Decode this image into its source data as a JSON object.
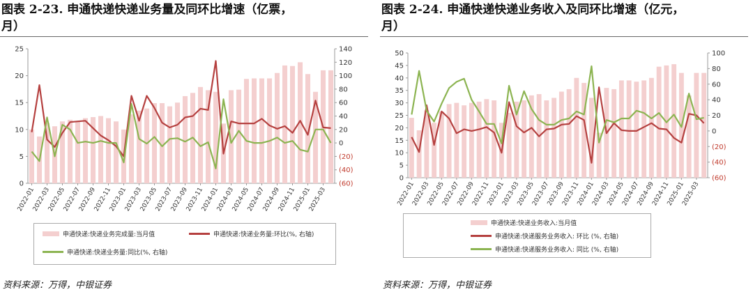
{
  "left": {
    "title_line1": "图表 2-23. 申通快递快递业务量及同环比增速（亿票，",
    "title_line2": "月）",
    "legend": {
      "bar": "申通快递:快递业务完成量:当月值",
      "red": "申通快递:快递业务量:环比(%, 右轴)",
      "green": "申通快递:快递业务量:同比(%, 右轴)"
    },
    "source": "资料来源：万得，中银证券"
  },
  "right": {
    "title_line1": "图表 2-24. 申通快递快递业务收入及同环比增速（亿元，",
    "title_line2": "月）",
    "legend": {
      "bar": "申通快递:快递业务收入:当月值",
      "red": "申通快递:快递服务业务收入: 环比 (%, 右轴)",
      "green": "申通快递:快递服务业务收入: 同比 (%, 右轴)"
    },
    "source": "资料来源：万得，中银证券"
  },
  "colors": {
    "bar": "#f4cfcf",
    "red": "#b5403f",
    "green": "#8cb451",
    "axis": "#999999",
    "right_tick": "#c0392b"
  },
  "chart_data": [
    {
      "type": "bar",
      "title": "图表 2-23. 申通快递快递业务量及同环比增速（亿票，月）",
      "x_tick_labels": [
        "2022-01",
        "2022-03",
        "2022-05",
        "2022-07",
        "2022-09",
        "2022-11",
        "2023-01",
        "2023-03",
        "2023-05",
        "2023-07",
        "2023-09",
        "2023-11",
        "2024-01",
        "2024-03",
        "2024-05",
        "2024-07",
        "2024-09",
        "2024-11",
        "2025-01",
        "2025-03"
      ],
      "x": [
        "2022-01",
        "2022-02",
        "2022-03",
        "2022-04",
        "2022-05",
        "2022-06",
        "2022-07",
        "2022-08",
        "2022-09",
        "2022-10",
        "2022-11",
        "2022-12",
        "2023-01",
        "2023-02",
        "2023-03",
        "2023-04",
        "2023-05",
        "2023-06",
        "2023-07",
        "2023-08",
        "2023-09",
        "2023-10",
        "2023-11",
        "2023-12",
        "2024-01",
        "2024-02",
        "2024-03",
        "2024-04",
        "2024-05",
        "2024-06",
        "2024-07",
        "2024-08",
        "2024-09",
        "2024-10",
        "2024-11",
        "2024-12",
        "2025-01",
        "2025-02",
        "2025-03",
        "2025-04"
      ],
      "y_left_ticks": [
        "0",
        "5",
        "10",
        "15",
        "20",
        "25"
      ],
      "y_right_ticks": [
        "(60)",
        "(40)",
        "(20)",
        "0",
        "20",
        "40",
        "60",
        "80",
        "100",
        "120",
        "140"
      ],
      "ylim_left": [
        0,
        25
      ],
      "ylim_right": [
        -60,
        140
      ],
      "series": [
        {
          "name": "申通快递:快递业务完成量:当月值",
          "kind": "bar",
          "axis": "left",
          "values": [
            10.0,
            8.7,
            11.2,
            10.6,
            11.5,
            11.8,
            11.6,
            12.1,
            12.3,
            12.5,
            12.1,
            11.5,
            10.0,
            12.8,
            13.5,
            13.9,
            14.9,
            14.9,
            14.3,
            15.0,
            16.2,
            16.8,
            17.9,
            17.3,
            17.0,
            11.1,
            17.3,
            17.4,
            19.4,
            19.5,
            19.5,
            19.5,
            20.5,
            21.9,
            21.8,
            22.5,
            20.3,
            17.0,
            21.0,
            21.0
          ]
        },
        {
          "name": "申通快递:快递业务量:环比(%, 右轴)",
          "kind": "line",
          "axis": "right",
          "values": [
            16,
            86,
            5,
            -6,
            15,
            31,
            32,
            33,
            22,
            11,
            4,
            -5,
            -20,
            70,
            33,
            70,
            52,
            30,
            23,
            27,
            38,
            40,
            51,
            49,
            122,
            -16,
            32,
            29,
            29,
            29,
            36,
            26,
            21,
            25,
            15,
            33,
            12,
            63,
            23,
            22
          ]
        },
        {
          "name": "申通快递:快递业务量:同比(%, 右轴)",
          "kind": "line",
          "axis": "right",
          "values": [
            -13,
            -27,
            38,
            -20,
            27,
            20,
            0,
            2,
            0,
            3,
            0,
            0,
            -29,
            58,
            6,
            -1,
            9,
            -5,
            6,
            7,
            2,
            8,
            -5,
            1,
            -38,
            65,
            0,
            18,
            3,
            0,
            0,
            3,
            8,
            0,
            3,
            -10,
            -13,
            20,
            20,
            0
          ]
        }
      ]
    },
    {
      "type": "bar",
      "title": "图表 2-24. 申通快递快递业务收入及同环比增速（亿元，月）",
      "x_tick_labels": [
        "2022-01",
        "2022-03",
        "2022-05",
        "2022-07",
        "2022-09",
        "2022-11",
        "2023-01",
        "2023-03",
        "2023-05",
        "2023-07",
        "2023-09",
        "2023-11",
        "2024-01",
        "2024-03",
        "2024-05",
        "2024-07",
        "2024-09",
        "2024-11",
        "2025-01",
        "2025-03"
      ],
      "x": [
        "2022-01",
        "2022-02",
        "2022-03",
        "2022-04",
        "2022-05",
        "2022-06",
        "2022-07",
        "2022-08",
        "2022-09",
        "2022-10",
        "2022-11",
        "2022-12",
        "2023-01",
        "2023-02",
        "2023-03",
        "2023-04",
        "2023-05",
        "2023-06",
        "2023-07",
        "2023-08",
        "2023-09",
        "2023-10",
        "2023-11",
        "2023-12",
        "2024-01",
        "2024-02",
        "2024-03",
        "2024-04",
        "2024-05",
        "2024-06",
        "2024-07",
        "2024-08",
        "2024-09",
        "2024-10",
        "2024-11",
        "2024-12",
        "2025-01",
        "2025-02",
        "2025-03",
        "2025-04"
      ],
      "y_left_ticks": [
        "0",
        "5",
        "10",
        "15",
        "20",
        "25",
        "30",
        "35",
        "40",
        "45",
        "50"
      ],
      "y_right_ticks": [
        "(60)",
        "(40)",
        "(20)",
        "0",
        "20",
        "40",
        "60",
        "80",
        "100"
      ],
      "ylim_left": [
        0,
        50
      ],
      "ylim_right": [
        -60,
        100
      ],
      "series": [
        {
          "name": "申通快递:快递业务收入:当月值",
          "kind": "bar",
          "axis": "left",
          "values": [
            24.0,
            19.0,
            27.0,
            22.0,
            26.5,
            29.5,
            30.0,
            29.0,
            30.0,
            30.5,
            31.5,
            31.0,
            22.0,
            26.0,
            30.5,
            31.0,
            33.0,
            33.5,
            31.0,
            32.0,
            34.5,
            35.5,
            40.0,
            38.0,
            32.0,
            18.0,
            36.0,
            35.5,
            39.0,
            39.0,
            38.5,
            39.0,
            40.0,
            44.5,
            45.0,
            45.5,
            42.0,
            33.0,
            42.0,
            42.0
          ]
        },
        {
          "name": "申通快递:快递服务业务收入: 环比 (%, 右轴)",
          "kind": "line",
          "axis": "right",
          "values": [
            -8,
            -27,
            33,
            -18,
            25,
            16,
            -3,
            2,
            0,
            2,
            5,
            -2,
            -28,
            37,
            6,
            -2,
            4,
            -7,
            2,
            3,
            8,
            9,
            19,
            14,
            -41,
            56,
            -3,
            10,
            1,
            0,
            0,
            5,
            10,
            3,
            2,
            -9,
            -15,
            22,
            20,
            10
          ]
        },
        {
          "name": "申通快递:快递服务业务收入: 同比 (%, 右轴)",
          "kind": "line",
          "axis": "right",
          "values": [
            21,
            77,
            26,
            12,
            35,
            55,
            63,
            67,
            40,
            25,
            9,
            9,
            -16,
            58,
            21,
            51,
            28,
            14,
            8,
            8,
            14,
            16,
            25,
            21,
            83,
            -15,
            14,
            11,
            16,
            16,
            26,
            23,
            16,
            23,
            11,
            21,
            5,
            48,
            15,
            17
          ]
        }
      ]
    }
  ]
}
